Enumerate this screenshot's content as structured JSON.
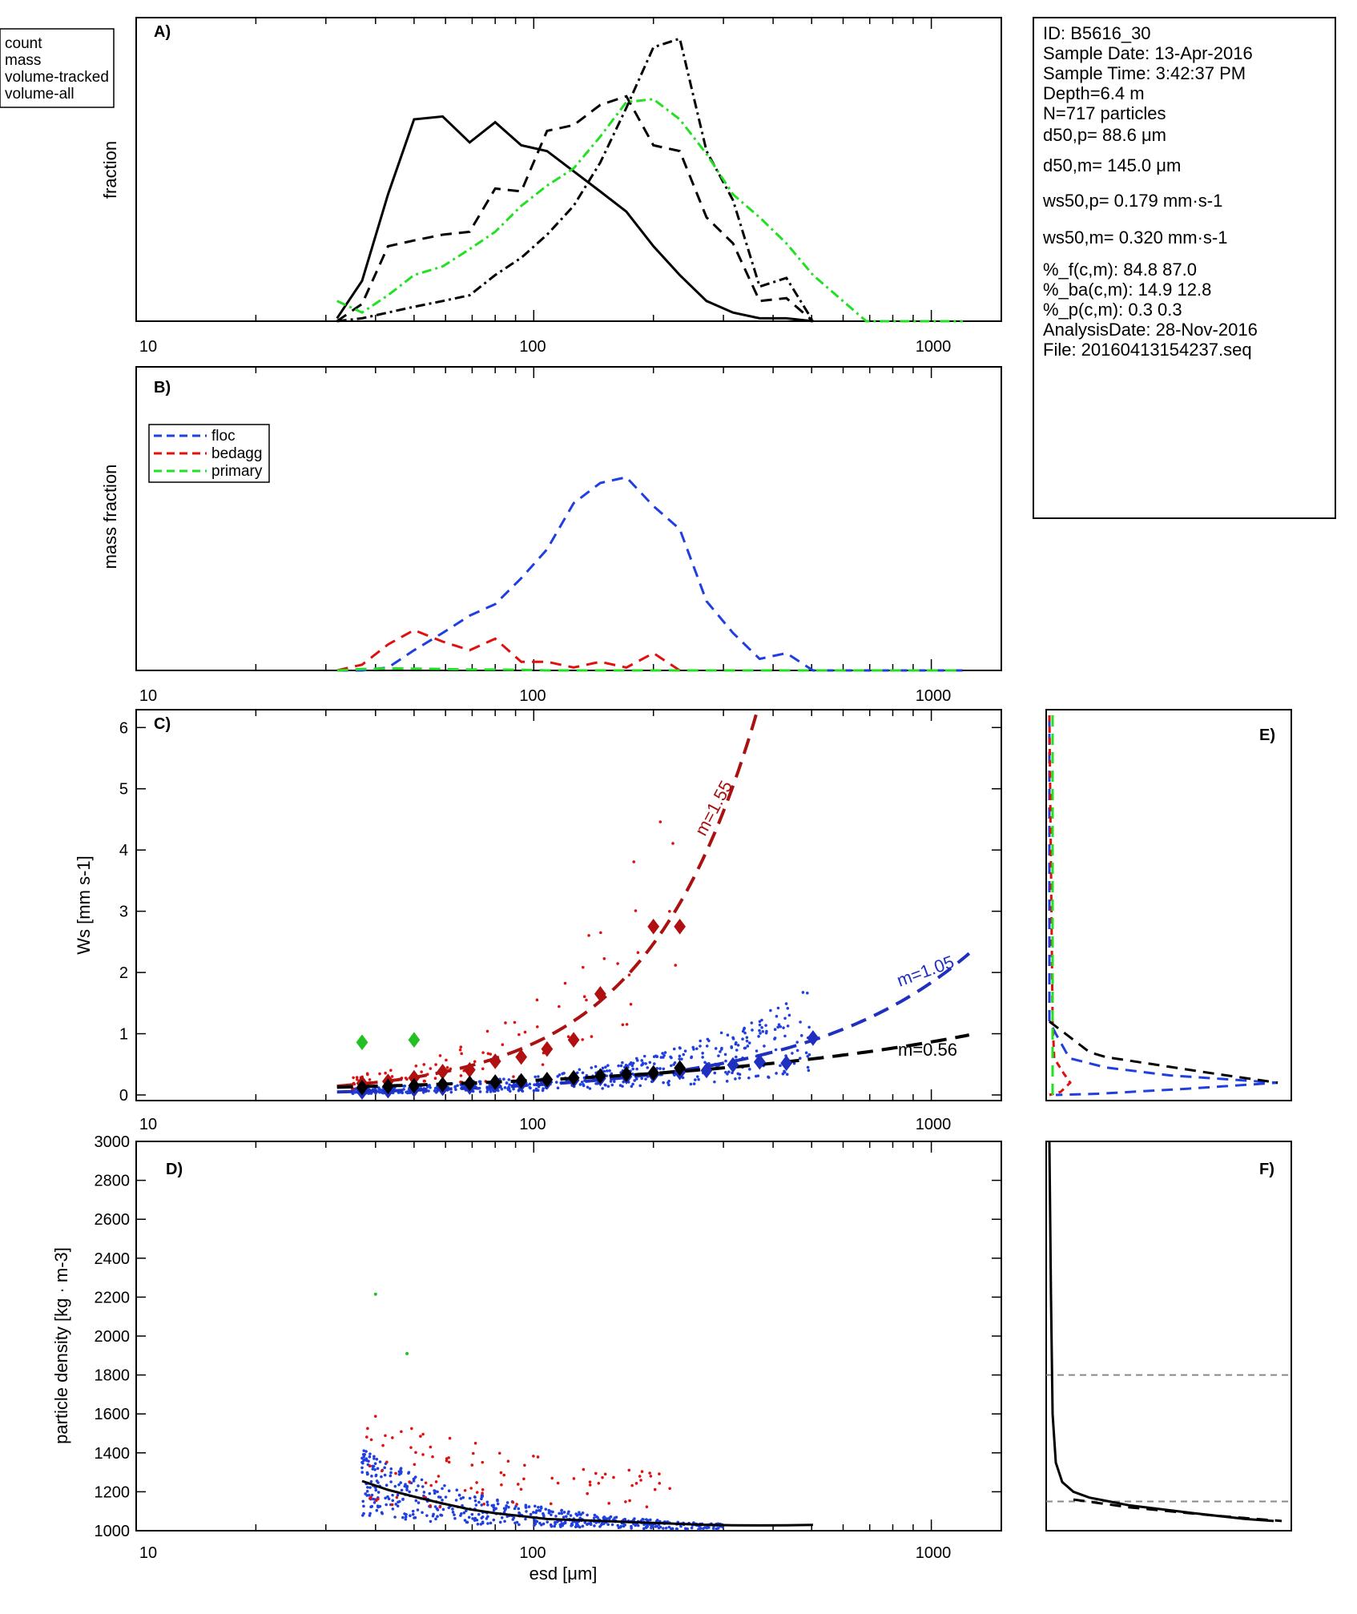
{
  "info_box": {
    "lines": [
      "ID: B5616_30",
      "Sample Date: 13-Apr-2016",
      "Sample Time:  3:42:37 PM",
      "Depth=6.4 m",
      "N=717 particles"
    ],
    "d50p": "d50,p= 88.6 μm",
    "d50m": "d50,m= 145.0 μm",
    "ws50p": "ws50,p= 0.179 mm·s-1",
    "ws50m": "ws50,m= 0.320 mm·s-1",
    "lines2": [
      "%_f(c,m): 84.8 87.0",
      "%_ba(c,m): 14.9 12.8",
      "%_p(c,m): 0.3 0.3",
      "AnalysisDate: 28-Nov-2016",
      "File: 20160413154237.seq"
    ]
  },
  "chart_data": [
    {
      "id": "A",
      "panel_label": "A)",
      "type": "line",
      "ylabel": "fraction",
      "xscale": "log",
      "xlim": [
        10,
        1500
      ],
      "ylim": [
        0,
        1
      ],
      "xticklabels": [
        "10",
        "100",
        "1000"
      ],
      "legend": {
        "placement": "outside-top-left",
        "entries": [
          "count",
          "mass",
          "volume-tracked",
          "volume-all"
        ]
      },
      "series": [
        {
          "name": "count",
          "color": "#000000",
          "dash": "solid",
          "x": [
            32,
            37,
            43,
            50,
            59,
            69,
            80,
            93,
            108,
            126,
            147,
            171,
            200,
            233,
            272,
            317,
            370,
            432,
            504
          ],
          "y": [
            0.01,
            0.14,
            0.44,
            0.7,
            0.71,
            0.62,
            0.69,
            0.61,
            0.59,
            0.52,
            0.45,
            0.38,
            0.26,
            0.16,
            0.07,
            0.03,
            0.01,
            0.01,
            0.0
          ]
        },
        {
          "name": "mass",
          "color": "#000000",
          "dash": "dashed",
          "x": [
            32,
            37,
            43,
            50,
            59,
            69,
            80,
            93,
            108,
            126,
            147,
            171,
            200,
            233,
            272,
            317,
            370,
            432,
            504
          ],
          "y": [
            0.0,
            0.06,
            0.26,
            0.28,
            0.3,
            0.31,
            0.46,
            0.45,
            0.66,
            0.68,
            0.75,
            0.78,
            0.61,
            0.59,
            0.36,
            0.27,
            0.07,
            0.08,
            0.0
          ]
        },
        {
          "name": "volume-tracked",
          "color": "#000000",
          "dash": "dashdot",
          "x": [
            32,
            37,
            43,
            50,
            59,
            69,
            80,
            93,
            108,
            126,
            147,
            171,
            200,
            233,
            272,
            317,
            370,
            432,
            504
          ],
          "y": [
            0.0,
            0.01,
            0.03,
            0.05,
            0.07,
            0.09,
            0.16,
            0.22,
            0.3,
            0.4,
            0.55,
            0.74,
            0.95,
            0.98,
            0.59,
            0.42,
            0.12,
            0.15,
            0.0
          ]
        },
        {
          "name": "volume-all",
          "color": "#22e022",
          "dash": "dashdot",
          "x": [
            32,
            37,
            43,
            50,
            59,
            69,
            80,
            93,
            108,
            126,
            147,
            171,
            200,
            233,
            272,
            317,
            370,
            432,
            504,
            588,
            686,
            800,
            1000,
            1200
          ],
          "y": [
            0.07,
            0.03,
            0.09,
            0.16,
            0.19,
            0.25,
            0.31,
            0.4,
            0.47,
            0.53,
            0.64,
            0.76,
            0.77,
            0.7,
            0.58,
            0.44,
            0.36,
            0.27,
            0.16,
            0.08,
            0.0,
            0.0,
            0.0,
            0.0
          ]
        }
      ]
    },
    {
      "id": "B",
      "panel_label": "B)",
      "type": "line",
      "ylabel": "mass fraction",
      "xscale": "log",
      "xlim": [
        10,
        1500
      ],
      "ylim": [
        0,
        1
      ],
      "xticklabels": [
        "10",
        "100",
        "1000"
      ],
      "legend": {
        "placement": "top-left",
        "entries": [
          "floc",
          "bedagg",
          "primary"
        ]
      },
      "series": [
        {
          "name": "floc",
          "color": "#1f3fe0",
          "dash": "dashed",
          "x": [
            32,
            37,
            43,
            50,
            59,
            69,
            80,
            93,
            108,
            126,
            147,
            171,
            200,
            233,
            272,
            317,
            370,
            432,
            504,
            588,
            686,
            800,
            1000,
            1200
          ],
          "y": [
            0.0,
            0.0,
            0.01,
            0.07,
            0.13,
            0.19,
            0.23,
            0.32,
            0.42,
            0.58,
            0.65,
            0.67,
            0.57,
            0.49,
            0.24,
            0.13,
            0.04,
            0.06,
            0.0,
            0.0,
            0.0,
            0.0,
            0.0,
            0.0
          ]
        },
        {
          "name": "bedagg",
          "color": "#e01010",
          "dash": "dashed",
          "x": [
            32,
            37,
            43,
            50,
            59,
            69,
            80,
            93,
            108,
            126,
            147,
            171,
            200,
            233,
            272,
            317,
            370,
            432,
            504,
            588,
            686,
            800,
            1000,
            1200
          ],
          "y": [
            0.0,
            0.02,
            0.09,
            0.14,
            0.1,
            0.07,
            0.11,
            0.03,
            0.03,
            0.01,
            0.03,
            0.01,
            0.06,
            0.0,
            0.0,
            0.0,
            0.0,
            0.0,
            0.0,
            0.0,
            0.0,
            0.0,
            0.0,
            0.0
          ]
        },
        {
          "name": "primary",
          "color": "#22e022",
          "dash": "dashed",
          "x": [
            32,
            37,
            43,
            50,
            59,
            69,
            80,
            93,
            108,
            126,
            147,
            171,
            200,
            233,
            272,
            317,
            370,
            432,
            504,
            588,
            686,
            800,
            1000,
            1200
          ],
          "y": [
            0.0,
            0.005,
            0.007,
            0.006,
            0.005,
            0.003,
            0.003,
            0.002,
            0.0,
            0.0,
            0.0,
            0.0,
            0.0,
            0.0,
            0.0,
            0.0,
            0.0,
            0.0,
            0.0,
            0.0,
            0.0,
            0.0,
            0.0,
            0.0
          ]
        }
      ]
    },
    {
      "id": "C",
      "panel_label": "C)",
      "type": "scatter",
      "ylabel": "Ws [mm s-1]",
      "xscale": "log",
      "xlim": [
        10,
        1500
      ],
      "ylim": [
        0,
        6.2
      ],
      "xticklabels": [
        "10",
        "100",
        "1000"
      ],
      "yticks": [
        0,
        1,
        2,
        3,
        4,
        5,
        6
      ],
      "fits": [
        {
          "label": "m=1.55",
          "color": "#aa1111",
          "a": 0.00067,
          "m": 1.55
        },
        {
          "label": "m=1.05",
          "color": "#1f2fc0",
          "a": 0.0013,
          "m": 1.05
        },
        {
          "label": "m=0.56",
          "color": "#000000",
          "a": 0.0181,
          "m": 0.56
        }
      ],
      "bin_medians": [
        {
          "group": "bedagg",
          "color": "#b01010",
          "x": [
            37,
            43,
            50,
            59,
            69,
            80,
            93,
            108,
            126,
            147,
            200,
            233
          ],
          "y": [
            0.19,
            0.22,
            0.28,
            0.38,
            0.41,
            0.55,
            0.62,
            0.75,
            0.9,
            1.65,
            2.75,
            2.75
          ]
        },
        {
          "group": "floc",
          "color": "#1f2fc0",
          "x": [
            37,
            43,
            50,
            59,
            69,
            80,
            93,
            108,
            126,
            147,
            171,
            200,
            233,
            272,
            317,
            370,
            432,
            504
          ],
          "y": [
            0.05,
            0.07,
            0.09,
            0.11,
            0.13,
            0.16,
            0.18,
            0.21,
            0.24,
            0.27,
            0.3,
            0.33,
            0.37,
            0.4,
            0.49,
            0.54,
            0.52,
            0.93
          ]
        },
        {
          "group": "all",
          "color": "#000000",
          "x": [
            37,
            43,
            50,
            59,
            69,
            80,
            93,
            108,
            126,
            147,
            171,
            200,
            233
          ],
          "y": [
            0.12,
            0.14,
            0.15,
            0.17,
            0.19,
            0.21,
            0.23,
            0.25,
            0.28,
            0.31,
            0.34,
            0.36,
            0.44
          ]
        },
        {
          "group": "primary",
          "color": "#22c022",
          "x": [
            37,
            50
          ],
          "y": [
            0.86,
            0.9
          ]
        }
      ]
    },
    {
      "id": "D",
      "panel_label": "D)",
      "type": "scatter",
      "xlabel": "esd [μm]",
      "ylabel": "particle density [kg · m-3]",
      "xscale": "log",
      "xlim": [
        10,
        1500
      ],
      "ylim": [
        1000,
        3000
      ],
      "xticklabels": [
        "10",
        "100",
        "1000"
      ],
      "yticks": [
        1000,
        1200,
        1400,
        1600,
        1800,
        2000,
        2200,
        2400,
        2600,
        2800,
        3000
      ],
      "median_curve": {
        "x": [
          37,
          43,
          50,
          59,
          69,
          80,
          93,
          108,
          126,
          147,
          171,
          200,
          233,
          272,
          317,
          370,
          432,
          504
        ],
        "y": [
          1255,
          1210,
          1175,
          1140,
          1110,
          1090,
          1075,
          1060,
          1055,
          1050,
          1045,
          1040,
          1035,
          1030,
          1028,
          1027,
          1028,
          1030
        ]
      },
      "primary_points": {
        "x": [
          40,
          48
        ],
        "y": [
          2215,
          1910
        ]
      }
    },
    {
      "id": "E",
      "panel_label": "E)",
      "type": "line",
      "note": "side histogram of Ws distribution for panel C"
    },
    {
      "id": "F",
      "panel_label": "F)",
      "type": "line",
      "note": "side histogram of particle density distribution for panel D",
      "reference_lines": [
        1800,
        1150
      ]
    }
  ]
}
